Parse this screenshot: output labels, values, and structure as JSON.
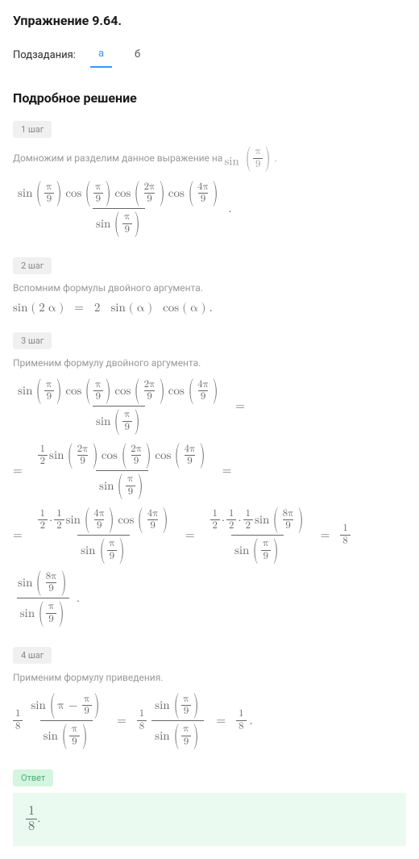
{
  "title": "Упражнение 9.64.",
  "subtasks": {
    "label": "Подзадания:",
    "tabs": [
      "а",
      "б"
    ],
    "active": 0
  },
  "solution_heading": "Подробное решение",
  "steps": [
    {
      "badge": "1 шаг",
      "text_prefix": "Домножим и разделим данное выражение на ",
      "text_math": "sin(π/9)",
      "text_suffix": "."
    },
    {
      "badge": "2 шаг",
      "text": "Вспомним формулы двойного аргумента.",
      "formula": "sin (2α) = 2 sin (α) cos (α)."
    },
    {
      "badge": "3 шаг",
      "text": "Применим формулу двойного аргумента."
    },
    {
      "badge": "4 шаг",
      "text": "Применим формулу приведения."
    }
  ],
  "answer": {
    "badge": "Ответ",
    "value_num": "1",
    "value_den": "8"
  },
  "sym": {
    "sin": "sin",
    "cos": "cos",
    "pi": "π",
    "alpha": "α",
    "dot": "·",
    "eq": "=",
    "minus": "−",
    "half_n": "1",
    "half_d": "2",
    "eighth_n": "1",
    "eighth_d": "8",
    "n2": "2",
    "n4": "4",
    "n8": "8",
    "d9": "9",
    "period": "."
  },
  "colors": {
    "text": "#2c2c2c",
    "muted": "#999999",
    "math": "#666666",
    "badge_bg": "#f0f0f0",
    "badge_fg": "#888888",
    "tab_active": "#3498ff",
    "ans_badge_bg": "#d4f5df",
    "ans_badge_fg": "#4caf7a",
    "ans_box_bg": "#eafaf0"
  }
}
